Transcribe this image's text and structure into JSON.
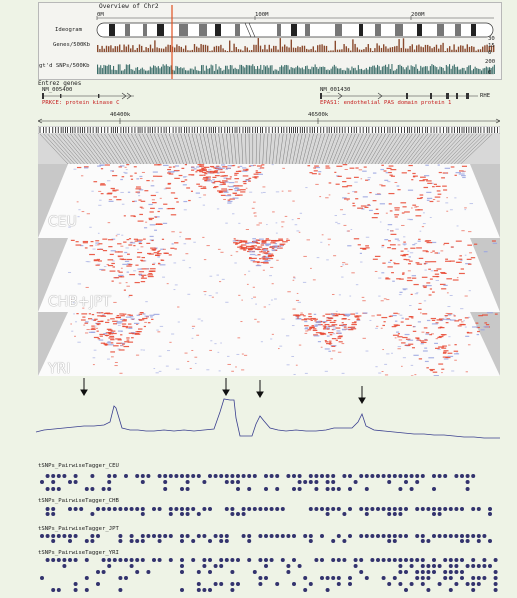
{
  "overview": {
    "title": "Overview of Chr2",
    "scale_labels": [
      "0M",
      "100M",
      "200M"
    ],
    "tracks": [
      {
        "label": "Ideogram",
        "scale": ""
      },
      {
        "label": "Genes/500Kb",
        "scale_top": "30",
        "scale_mid": "15",
        "scale_bot": "0"
      },
      {
        "label": "gt'd SNPs/500Kb",
        "scale_top": "200",
        "scale_bot": "0"
      }
    ]
  },
  "genes": {
    "header": "Entrez genes",
    "left_id": "NM_005400",
    "left_name": "PRKCE: protein kinase C",
    "right_id": "NM_001430",
    "right_name": "EPAS1: endothelial PAS domain protein 1",
    "right_tag": "RHE"
  },
  "ruler": {
    "labels": [
      "46400k",
      "46500k"
    ]
  },
  "populations": [
    "CEU",
    "CHB+JPT",
    "YRI"
  ],
  "tsnp_panels": [
    {
      "title": "tSNPs_PairwiseTagger_CEU"
    },
    {
      "title": "tSNPs_PairwiseTagger_CHB"
    },
    {
      "title": "tSNPs_PairwiseTagger_JPT"
    },
    {
      "title": "tSNPs_PairwiseTagger_YRI"
    }
  ],
  "colors": {
    "ld_high": "#e8442e",
    "ld_low": "#9aa4e0",
    "dot": "#33336e",
    "marker": "#e05020",
    "gray": "#c8c8c8"
  }
}
